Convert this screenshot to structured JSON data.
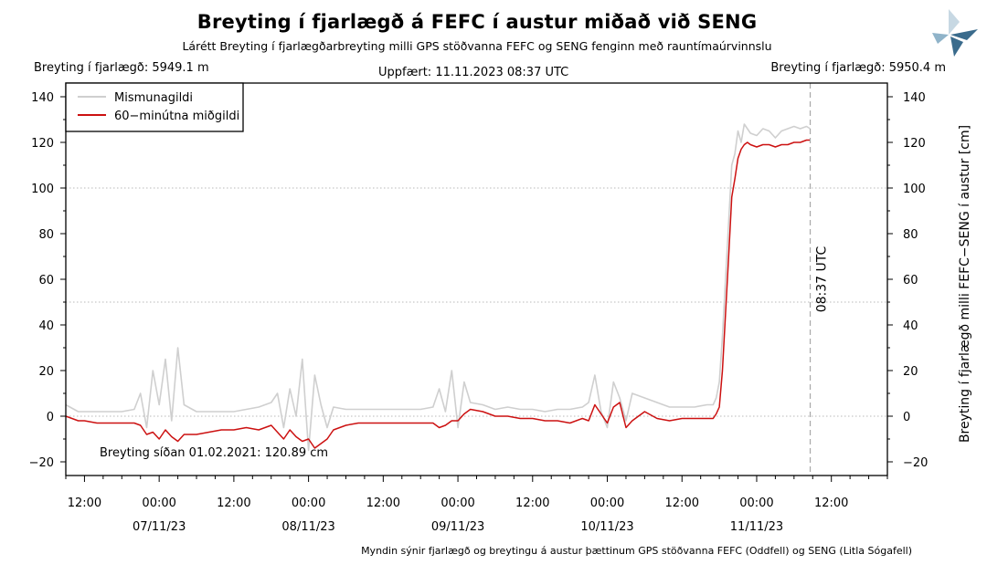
{
  "header": {
    "title": "Breyting í fjarlægð á FEFC í austur miðað við SENG",
    "subtitle": "Lárétt Breyting í fjarlægðarbreyting milli GPS stöðvanna FEFC og SENG fenginn með rauntímaúrvinnslu",
    "distance_left": "Breyting í fjarlægð: 5949.1 m",
    "updated": "Uppfært: 11.11.2023 08:37 UTC",
    "distance_right": "Breyting í fjarlægð: 5950.4 m"
  },
  "footer": {
    "caption": "Myndin sýnir fjarlægð og breytingu á austur þættinum GPS stöðvanna FEFC (Oddfell) og SENG (Litla Sógafell)"
  },
  "logo": {
    "icon": "vedur-logo-icon",
    "colors": [
      "#3a6b8c",
      "#8fb3c9",
      "#c7d8e3"
    ]
  },
  "chart_data": {
    "type": "line",
    "title": "Breyting í fjarlægð á FEFC í austur miðað við SENG",
    "ylabel": "Breyting í fjarlægð milli FEFC−SENG í austur [cm]",
    "ylim": [
      -26,
      146
    ],
    "yticks": [
      -20,
      0,
      20,
      40,
      60,
      80,
      100,
      120,
      140
    ],
    "y_gridlines": [
      0,
      50,
      100
    ],
    "xlim_hours": [
      -3,
      129
    ],
    "xticks": [
      {
        "h": 0,
        "time": "12:00",
        "date": ""
      },
      {
        "h": 12,
        "time": "00:00",
        "date": "07/11/23"
      },
      {
        "h": 24,
        "time": "12:00",
        "date": ""
      },
      {
        "h": 36,
        "time": "00:00",
        "date": "08/11/23"
      },
      {
        "h": 48,
        "time": "12:00",
        "date": ""
      },
      {
        "h": 60,
        "time": "00:00",
        "date": "09/11/23"
      },
      {
        "h": 72,
        "time": "12:00",
        "date": ""
      },
      {
        "h": 84,
        "time": "00:00",
        "date": "10/11/23"
      },
      {
        "h": 96,
        "time": "12:00",
        "date": ""
      },
      {
        "h": 108,
        "time": "00:00",
        "date": "11/11/23"
      },
      {
        "h": 120,
        "time": "12:00",
        "date": ""
      }
    ],
    "colors": {
      "raw": "#cfcfcf",
      "avg": "#cc1111",
      "vline": "#a8a8a8"
    },
    "vline": {
      "h": 116.6,
      "label": "08:37 UTC"
    },
    "legend": {
      "position": "top-left",
      "entries": [
        "Mismunagildi",
        "60−minútna miðgildi"
      ]
    },
    "annotation": "Breyting síðan 01.02.2021: 120.89 cm",
    "series": [
      {
        "name": "60−minútna miðgildi",
        "x": [
          -3,
          -1,
          0,
          2,
          4,
          6,
          8,
          9,
          10,
          11,
          12,
          13,
          14,
          15,
          16,
          18,
          20,
          22,
          24,
          26,
          28,
          30,
          31,
          32,
          33,
          34,
          35,
          36,
          37,
          38,
          39,
          40,
          42,
          44,
          46,
          48,
          50,
          52,
          54,
          56,
          57,
          58,
          59,
          60,
          61,
          62,
          64,
          66,
          68,
          70,
          72,
          74,
          76,
          78,
          80,
          81,
          82,
          83,
          84,
          85,
          86,
          87,
          88,
          90,
          92,
          94,
          96,
          98,
          100,
          101,
          101.5,
          102,
          102.5,
          103,
          103.5,
          104,
          104.5,
          105,
          105.5,
          106,
          106.5,
          107,
          108,
          109,
          110,
          111,
          112,
          113,
          114,
          115,
          116,
          116.6
        ],
        "values": [
          0,
          -2,
          -2,
          -3,
          -3,
          -3,
          -3,
          -4,
          -8,
          -7,
          -10,
          -6,
          -9,
          -11,
          -8,
          -8,
          -7,
          -6,
          -6,
          -5,
          -6,
          -4,
          -7,
          -10,
          -6,
          -9,
          -11,
          -10,
          -14,
          -12,
          -10,
          -6,
          -4,
          -3,
          -3,
          -3,
          -3,
          -3,
          -3,
          -3,
          -5,
          -4,
          -2,
          -2,
          1,
          3,
          2,
          0,
          0,
          -1,
          -1,
          -2,
          -2,
          -3,
          -1,
          -2,
          5,
          1,
          -3,
          4,
          6,
          -5,
          -2,
          2,
          -1,
          -2,
          -1,
          -1,
          -1,
          -1,
          1,
          4,
          20,
          45,
          70,
          96,
          104,
          113,
          117,
          119,
          120,
          119,
          118,
          119,
          119,
          118,
          119,
          119,
          120,
          120,
          121,
          121
        ]
      },
      {
        "name": "Mismunagildi",
        "x": [
          -3,
          -1,
          0,
          2,
          4,
          6,
          8,
          9,
          10,
          11,
          12,
          13,
          14,
          15,
          16,
          18,
          20,
          22,
          24,
          26,
          28,
          30,
          31,
          32,
          33,
          34,
          35,
          36,
          37,
          38,
          39,
          40,
          42,
          44,
          46,
          48,
          50,
          52,
          54,
          56,
          57,
          58,
          59,
          60,
          61,
          62,
          64,
          66,
          68,
          70,
          72,
          74,
          76,
          78,
          80,
          81,
          82,
          83,
          84,
          85,
          86,
          87,
          88,
          90,
          92,
          94,
          96,
          98,
          100,
          101,
          101.5,
          102,
          102.5,
          103,
          103.5,
          104,
          104.5,
          105,
          105.5,
          106,
          106.5,
          107,
          108,
          109,
          110,
          111,
          112,
          113,
          114,
          115,
          116,
          116.6
        ],
        "values": [
          5,
          2,
          2,
          2,
          2,
          2,
          3,
          10,
          -5,
          20,
          5,
          25,
          -2,
          30,
          5,
          2,
          2,
          2,
          2,
          3,
          4,
          6,
          10,
          -5,
          12,
          0,
          25,
          -15,
          18,
          5,
          -5,
          4,
          3,
          3,
          3,
          3,
          3,
          3,
          3,
          4,
          12,
          2,
          20,
          -5,
          15,
          6,
          5,
          3,
          4,
          3,
          3,
          2,
          3,
          3,
          4,
          6,
          18,
          2,
          -5,
          15,
          8,
          -2,
          10,
          8,
          6,
          4,
          4,
          4,
          5,
          5,
          8,
          15,
          35,
          60,
          85,
          110,
          115,
          125,
          120,
          128,
          126,
          124,
          123,
          126,
          125,
          122,
          125,
          126,
          127,
          126,
          127,
          126
        ]
      }
    ]
  }
}
